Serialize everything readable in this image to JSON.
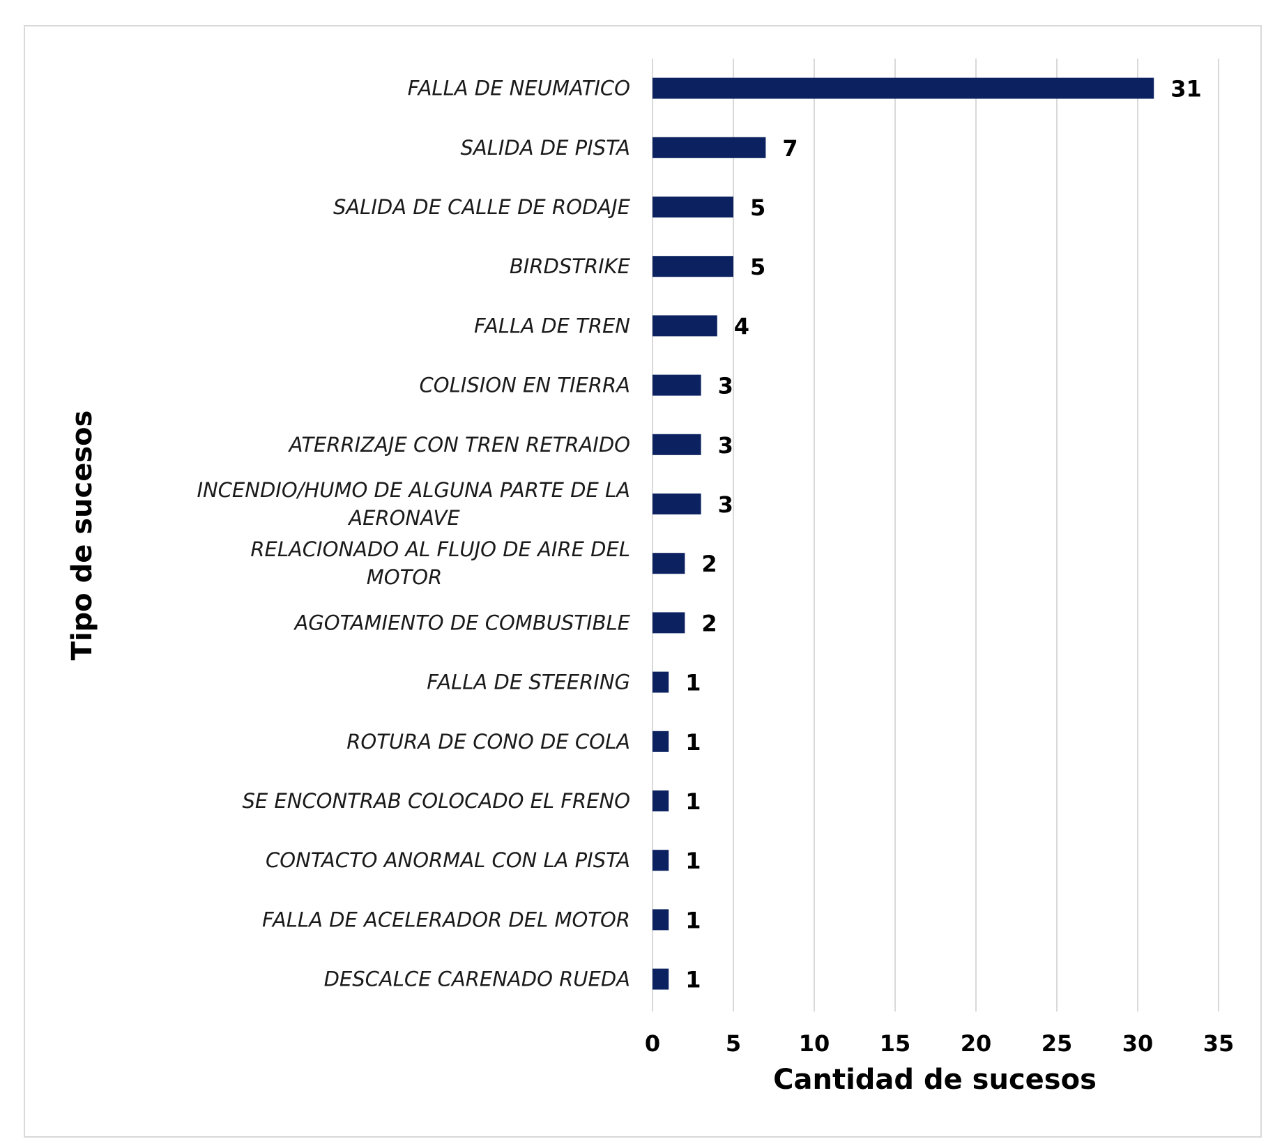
{
  "chart_data": {
    "type": "bar",
    "orientation": "horizontal",
    "title": "",
    "xlabel": "Cantidad de sucesos",
    "ylabel": "Tipo de sucesos",
    "xlim": [
      0,
      35
    ],
    "xticks": [
      0,
      5,
      10,
      15,
      20,
      25,
      30,
      35
    ],
    "grid": "vertical",
    "legend": "none",
    "bar_color": "#0b2160",
    "categories": [
      [
        "FALLA DE NEUMATICO"
      ],
      [
        "SALIDA DE PISTA"
      ],
      [
        "SALIDA DE CALLE DE RODAJE"
      ],
      [
        "BIRDSTRIKE"
      ],
      [
        "FALLA DE TREN"
      ],
      [
        "COLISION EN TIERRA"
      ],
      [
        "ATERRIZAJE CON TREN RETRAIDO"
      ],
      [
        "INCENDIO/HUMO DE ALGUNA PARTE DE LA",
        "AERONAVE"
      ],
      [
        "RELACIONADO AL FLUJO DE AIRE DEL",
        "MOTOR"
      ],
      [
        "AGOTAMIENTO DE COMBUSTIBLE"
      ],
      [
        "FALLA DE STEERING"
      ],
      [
        "ROTURA DE CONO DE COLA"
      ],
      [
        "SE ENCONTRAB COLOCADO EL FRENO"
      ],
      [
        "CONTACTO ANORMAL CON LA PISTA"
      ],
      [
        "FALLA DE ACELERADOR DEL MOTOR"
      ],
      [
        "DESCALCE CARENADO RUEDA"
      ]
    ],
    "values": [
      31,
      7,
      5,
      5,
      4,
      3,
      3,
      3,
      2,
      2,
      1,
      1,
      1,
      1,
      1,
      1
    ]
  }
}
